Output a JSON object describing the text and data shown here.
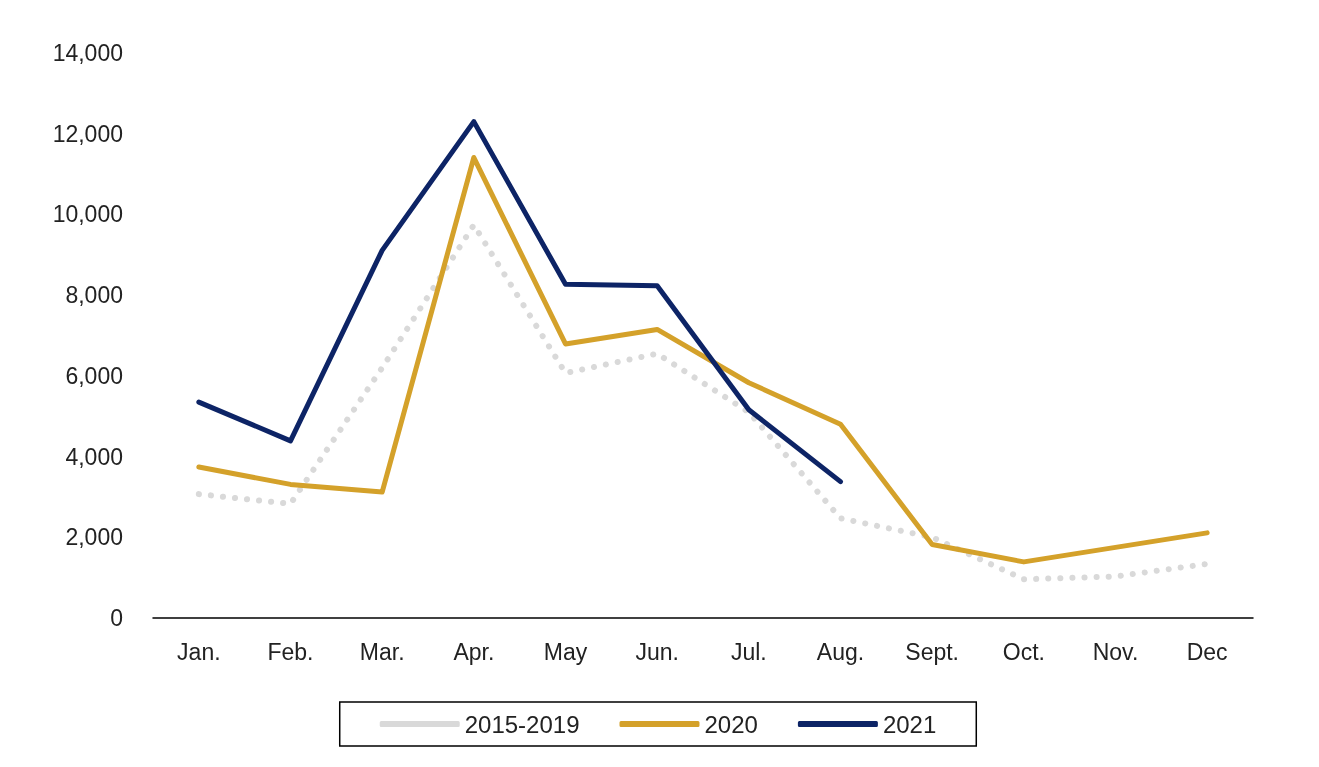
{
  "chart_data": {
    "type": "line",
    "categories": [
      "Jan.",
      "Feb.",
      "Mar.",
      "Apr.",
      "May",
      "Jun.",
      "Jul.",
      "Aug.",
      "Sept.",
      "Oct.",
      "Nov.",
      "Dec"
    ],
    "series": [
      {
        "name": "2015-2019",
        "color": "#d9d9d9",
        "line_style": "dotted",
        "values": [
          3070,
          2830,
          6200,
          9740,
          6070,
          6550,
          5100,
          2470,
          2000,
          960,
          1030,
          1340
        ]
      },
      {
        "name": "2020",
        "color": "#d4a12a",
        "line_style": "solid",
        "values": [
          3740,
          3310,
          3120,
          11410,
          6790,
          7150,
          5830,
          4800,
          1820,
          1390,
          1750,
          2110
        ]
      },
      {
        "name": "2021",
        "color": "#0d2466",
        "line_style": "solid",
        "values": [
          5350,
          4390,
          9110,
          12300,
          8270,
          8230,
          5160,
          3380,
          null,
          null,
          null,
          null
        ]
      }
    ],
    "ylim": [
      0,
      14000
    ],
    "yticks": [
      0,
      {
        "value": 2000,
        "label": "2,000"
      },
      {
        "value": 4000,
        "label": "4,000"
      },
      {
        "value": 6000,
        "label": "6,000"
      },
      {
        "value": 8000,
        "label": "8,000"
      },
      {
        "value": 10000,
        "label": "10,000"
      },
      {
        "value": 12000,
        "label": "12,000"
      },
      {
        "value": 14000,
        "label": "14,000"
      }
    ],
    "grid": false,
    "legend": "bottom",
    "marker": "none"
  }
}
